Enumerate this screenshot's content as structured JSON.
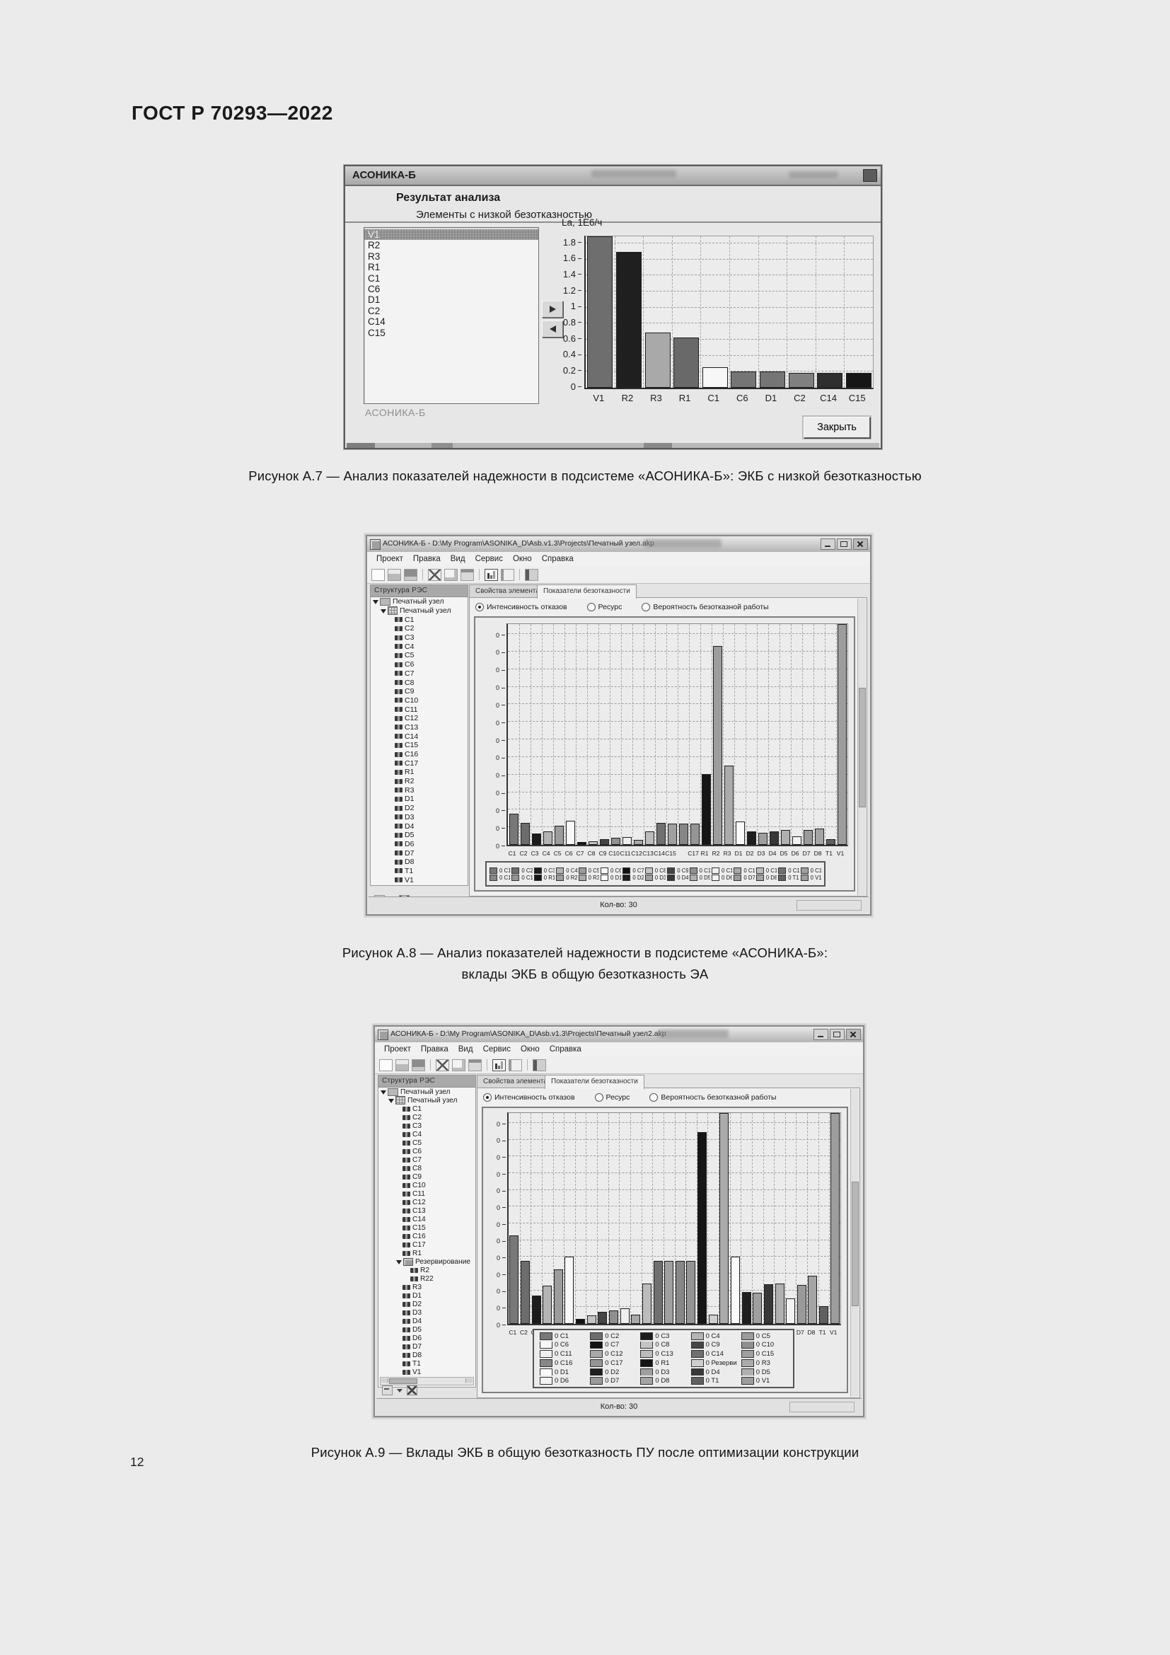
{
  "page": {
    "header": "ГОСТ Р 70293—2022",
    "page_number": "12",
    "captions": {
      "a7": "Рисунок А.7 — Анализ показателей надежности в подсистеме «АСОНИКА-Б»: ЭКБ с низкой безотказностью",
      "a8_line1": "Рисунок А.8 — Анализ показателей надежности в подсистеме «АСОНИКА-Б»:",
      "a8_line2": "вклады ЭКБ в общую безотказность ЭА",
      "a9": "Рисунок А.9 — Вклады ЭКБ в общую безотказность ПУ после оптимизации конструкции"
    }
  },
  "dialog": {
    "title": "АСОНИКА-Б",
    "heading": "Результат анализа",
    "subheading": "Элементы с низкой безотказностью",
    "list_items": [
      "V1",
      "R2",
      "R3",
      "R1",
      "C1",
      "C6",
      "D1",
      "C2",
      "C14",
      "C15"
    ],
    "selected_index": 0,
    "footer_label": "АСОНИКА-Б",
    "close_button": "Закрыть"
  },
  "app_common": {
    "menu": [
      "Проект",
      "Правка",
      "Вид",
      "Сервис",
      "Окно",
      "Справка"
    ],
    "toolbar_icons": [
      "new-document",
      "open-folder",
      "save",
      "cut",
      "copy",
      "paste",
      "bar-chart",
      "report",
      "exit"
    ],
    "tree_header": "Структура РЭС",
    "tabs": {
      "properties": "Свойства элемента",
      "reliability": "Показатели безотказности"
    },
    "radios": {
      "failure_rate": "Интенсивность отказов",
      "resource": "Ресурс",
      "probability": "Вероятность безотказной работы"
    },
    "status_count": "Кол-во: 30"
  },
  "window2": {
    "title": "АСОНИКА-Б - D:\\My Program\\ASONIKA_D\\Asb.v1.3\\Projects\\Печатный узел.akp",
    "tree": {
      "root": "Печатный узел",
      "sub": "Печатный узел",
      "items": [
        "C1",
        "C2",
        "C3",
        "C4",
        "C5",
        "C6",
        "C7",
        "C8",
        "C9",
        "C10",
        "C11",
        "C12",
        "C13",
        "C14",
        "C15",
        "C16",
        "C17",
        "R1",
        "R2",
        "R3",
        "D1",
        "D2",
        "D3",
        "D4",
        "D5",
        "D6",
        "D7",
        "D8",
        "T1",
        "V1"
      ]
    },
    "legend": [
      "0 C1",
      "0 C2",
      "0 C3",
      "0 C4",
      "0 C5",
      "0 C6",
      "0 C7",
      "0 C8",
      "0 C9",
      "0 C10",
      "0 C11",
      "0 C12",
      "0 C13",
      "0 C14",
      "0 C15",
      "0 C16",
      "0 C17",
      "0 R1",
      "0 R2",
      "0 R3",
      "0 D1",
      "0 D2",
      "0 D3",
      "0 D4",
      "0 D5",
      "0 D6",
      "0 D7",
      "0 D8",
      "0 T1",
      "0 V1"
    ]
  },
  "window3": {
    "title": "АСОНИКА-Б - D:\\My Program\\ASONIKA_D\\Asb.v1.3\\Projects\\Печатный узел2.akp",
    "tree": {
      "root": "Печатный узел",
      "sub": "Печатный узел",
      "items": [
        "C1",
        "C2",
        "C3",
        "C4",
        "C5",
        "C6",
        "C7",
        "C8",
        "C9",
        "C10",
        "C11",
        "C12",
        "C13",
        "C14",
        "C15",
        "C16",
        "C17",
        "R1",
        {
          "label": "Резервирование",
          "children": [
            "R2",
            "R22"
          ]
        },
        "R3",
        "D1",
        "D2",
        "D3",
        "D4",
        "D5",
        "D6",
        "D7",
        "D8",
        "T1",
        "V1"
      ]
    },
    "legend": [
      "0 C1",
      "0 C2",
      "0 C3",
      "0 C4",
      "0 C5",
      "0 C6",
      "0 C7",
      "0 C8",
      "0 C9",
      "0 C10",
      "0 C11",
      "0 C12",
      "0 C13",
      "0 C14",
      "0 C15",
      "0 C16",
      "0 C17",
      "0 R1",
      "0 Резервирование",
      "0 R3",
      "0 D1",
      "0 D2",
      "0 D3",
      "0 D4",
      "0 D5",
      "0 D6",
      "0 D7",
      "0 D8",
      "0 T1",
      "0 V1"
    ]
  },
  "chart_data": [
    {
      "id": "fig_a7_low_reliability_elements",
      "type": "bar",
      "title": "",
      "xlabel": "",
      "ylabel": "La, 1Е6/ч",
      "categories": [
        "V1",
        "R2",
        "R3",
        "R1",
        "C1",
        "C6",
        "D1",
        "C2",
        "C14",
        "C15"
      ],
      "values": [
        1.9,
        1.7,
        0.69,
        0.63,
        0.26,
        0.2,
        0.2,
        0.19,
        0.19,
        0.19
      ],
      "ylim": [
        0,
        1.89
      ],
      "yticks": [
        "0",
        "0.2",
        "0.4",
        "0.6",
        "0.8",
        "1",
        "1.2",
        "1.4",
        "1.6",
        "1.8"
      ],
      "ytick_values": [
        0,
        0.2,
        0.4,
        0.6,
        0.8,
        1,
        1.2,
        1.4,
        1.6,
        1.8
      ],
      "grid": true,
      "legend_position": "none",
      "bar_colors": [
        "#6e6e6e",
        "#1f1f1f",
        "#a9a9a9",
        "#696969",
        "#f7f7f7",
        "#757575",
        "#757575",
        "#808080",
        "#2f2f2f",
        "#161616"
      ],
      "bar_patterns": [
        null,
        "dots-light",
        null,
        null,
        null,
        null,
        null,
        null,
        "dots-light",
        null
      ]
    },
    {
      "id": "fig_a8_contributions_failure_rate",
      "type": "bar",
      "title": "Интенсивность отказов",
      "xlabel": "",
      "ylabel": "",
      "value_unit": "relative (axis labels all read 0)",
      "categories": [
        "C1",
        "C2",
        "C3",
        "C4",
        "C5",
        "C6",
        "C7",
        "C8",
        "C9",
        "C10",
        "C11",
        "C12",
        "C13",
        "C14",
        "C15",
        "C16",
        "C17",
        "R1",
        "R2",
        "R3",
        "D1",
        "D2",
        "D3",
        "D4",
        "D5",
        "D6",
        "D7",
        "D8",
        "T1",
        "V1"
      ],
      "values": [
        0.14,
        0.1,
        0.05,
        0.06,
        0.085,
        0.11,
        0.012,
        0.016,
        0.025,
        0.032,
        0.036,
        0.022,
        0.062,
        0.1,
        0.097,
        0.097,
        0.097,
        0.32,
        0.9,
        0.36,
        0.106,
        0.06,
        0.053,
        0.062,
        0.066,
        0.04,
        0.066,
        0.075,
        0.025,
        1.0
      ],
      "ylim": [
        0,
        1
      ],
      "ytick_labels": [
        "0",
        "0",
        "0",
        "0",
        "0",
        "0",
        "0",
        "0",
        "0",
        "0",
        "0",
        "0",
        "0"
      ],
      "xtick_labels": [
        "C1",
        "C2",
        "C3",
        "C4",
        "C5",
        "C6",
        "C7",
        "C8",
        "C9",
        "C10",
        "C11",
        "C12",
        "C13",
        "C14",
        "C15",
        "",
        "C17",
        "R1",
        "R2",
        "R3",
        "D1",
        "D2",
        "D3",
        "D4",
        "D5",
        "D6",
        "D7",
        "D8",
        "T1",
        "V1"
      ],
      "grid": true,
      "legend_position": "bottom",
      "bar_colors": [
        "#787878",
        "#6d6d6d",
        "#1c1c1c",
        "#b4b4b4",
        "#9c9c9c",
        "#f8f8f8",
        "#121212",
        "#c4c4c4",
        "#454545",
        "#8f8f8f",
        "#efefef",
        "#a8a8a8",
        "#bcbcbc",
        "#707070",
        "#a0a0a0",
        "#878787",
        "#959595",
        "#151515",
        "#9d9d9d",
        "#ababab",
        "#fafafa",
        "#1e1e1e",
        "#9f9f9f",
        "#383838",
        "#b0b0b0",
        "#f2f2f2",
        "#9a9a9a",
        "#a4a4a4",
        "#606060",
        "#9d9d9d"
      ],
      "bar_patterns": [
        "dots-light",
        null,
        null,
        null,
        null,
        null,
        null,
        null,
        "dots-light",
        null,
        null,
        null,
        null,
        null,
        null,
        null,
        null,
        null,
        null,
        null,
        null,
        null,
        null,
        "dots-light",
        null,
        null,
        null,
        null,
        "dots-light",
        null
      ]
    },
    {
      "id": "fig_a9_contributions_after_optimization",
      "type": "bar",
      "title": "Интенсивность отказов",
      "xlabel": "",
      "ylabel": "",
      "value_unit": "relative (axis labels all read 0)",
      "categories": [
        "C1",
        "C2",
        "C3",
        "C4",
        "C5",
        "C6",
        "C7",
        "C8",
        "C9",
        "C10",
        "C11",
        "C12",
        "C13",
        "C14",
        "C15",
        "C16",
        "C17",
        "R1",
        "Резервирование",
        "R3",
        "D1",
        "D2",
        "D3",
        "D4",
        "D5",
        "D6",
        "D7",
        "D8",
        "T1",
        "V1"
      ],
      "values": [
        0.42,
        0.3,
        0.133,
        0.18,
        0.257,
        0.32,
        0.023,
        0.04,
        0.057,
        0.063,
        0.073,
        0.043,
        0.19,
        0.3,
        0.3,
        0.3,
        0.3,
        0.91,
        0.043,
        1.0,
        0.32,
        0.15,
        0.147,
        0.187,
        0.19,
        0.12,
        0.183,
        0.227,
        0.083,
        1.0
      ],
      "ylim": [
        0,
        1
      ],
      "ytick_labels": [
        "0",
        "0",
        "0",
        "0",
        "0",
        "0",
        "0",
        "0",
        "0",
        "0",
        "0",
        "0",
        "0"
      ],
      "xtick_labels": [
        "C1",
        "C2",
        "C3",
        "C4",
        "C5",
        "C6",
        "C7",
        "C8",
        "C9",
        "C10",
        "C11",
        "C12",
        "C13",
        "C14",
        "C15",
        "",
        "C17",
        "R1",
        "",
        "R3",
        "D1",
        "D2",
        "D3",
        "D4",
        "D5",
        "D6",
        "D7",
        "D8",
        "T1",
        "V1"
      ],
      "grid": true,
      "legend_position": "bottom",
      "bar_colors": [
        "#787878",
        "#6d6d6d",
        "#1c1c1c",
        "#b4b4b4",
        "#9c9c9c",
        "#f8f8f8",
        "#121212",
        "#c4c4c4",
        "#454545",
        "#8f8f8f",
        "#efefef",
        "#a8a8a8",
        "#bcbcbc",
        "#707070",
        "#a0a0a0",
        "#878787",
        "#959595",
        "#151515",
        "#cfcfcf",
        "#ababab",
        "#fafafa",
        "#1e1e1e",
        "#9f9f9f",
        "#383838",
        "#b0b0b0",
        "#f2f2f2",
        "#9a9a9a",
        "#a4a4a4",
        "#606060",
        "#9d9d9d"
      ],
      "bar_patterns": [
        "dots-light",
        null,
        null,
        null,
        null,
        null,
        null,
        null,
        "dots-light",
        null,
        null,
        null,
        null,
        null,
        null,
        null,
        null,
        null,
        "dots-dark",
        null,
        null,
        null,
        null,
        "dots-light",
        null,
        null,
        null,
        null,
        "dots-light",
        null
      ]
    }
  ]
}
